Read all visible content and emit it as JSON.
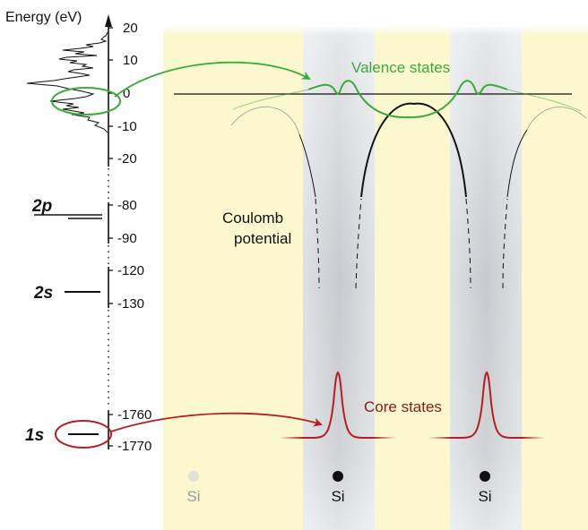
{
  "axis": {
    "title": "Energy (eV)",
    "ticks_upper": [
      "20",
      "10",
      "0",
      "-10",
      "-20"
    ],
    "ticks_2p": [
      "-80",
      "-90"
    ],
    "ticks_2s": [
      "-120",
      "-130"
    ],
    "ticks_1s": [
      "-1760",
      "-1770"
    ]
  },
  "levels": {
    "p2": "2p",
    "s2": "2s",
    "s1": "1s"
  },
  "labels": {
    "valence": "Valence states",
    "coulomb_line1": "Coulomb",
    "coulomb_line2": "potential",
    "core": "Core states"
  },
  "atoms": [
    {
      "label": "Si",
      "faded": true
    },
    {
      "label": "Si",
      "faded": false
    },
    {
      "label": "Si",
      "faded": false
    }
  ],
  "colors": {
    "valence": "#3aaa3a",
    "core": "#b41e1e",
    "yellow_band": "#fbf7cf",
    "gray_band": "#d2d4d8",
    "text": "#111111"
  }
}
